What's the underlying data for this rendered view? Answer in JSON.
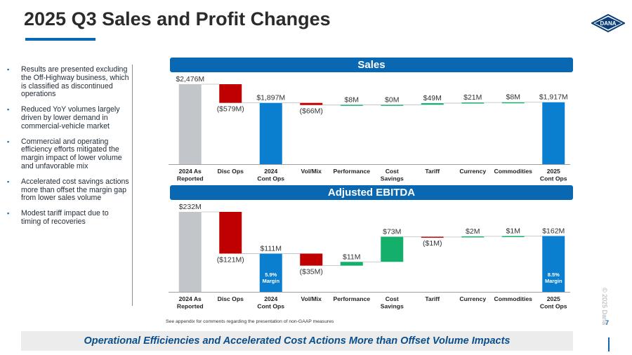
{
  "page": {
    "title": "2025 Q3 Sales and Profit Changes",
    "logo_text": "DANA",
    "copyright": "© 2025 Dana",
    "page_number": "7",
    "footnote": "See appendix for comments regarding the presentation of non-GAAP measures",
    "bottom_banner": "Operational Efficiencies and Accelerated Cost Actions More than Offset Volume Impacts",
    "colors": {
      "brand": "#0a67b2",
      "baseline": "#c2c6ca",
      "decrease": "#c00000",
      "increase": "#14b06b",
      "total": "#0a7fd0"
    }
  },
  "bullets": [
    "Results are presented excluding the Off-Highway business, which is classified as discontinued operations",
    "Reduced YoY volumes largely driven by lower demand in commercial-vehicle market",
    "Commercial and operating efficiency efforts mitigated the margin impact of lower volume and unfavorable mix",
    "Accelerated cost savings actions more than offset the margin gap from lower sales volume",
    "Modest tariff impact due to timing of recoveries"
  ],
  "chart_data": [
    {
      "type": "bar",
      "subtype": "waterfall",
      "title": "Sales",
      "unit": "$M",
      "categories": [
        "2024 As Reported",
        "Disc Ops",
        "2024 Cont Ops",
        "Vol/Mix",
        "Performance",
        "Cost Savings",
        "Tariff",
        "Currency",
        "Commodities",
        "2025 Cont Ops"
      ],
      "tick_labels": [
        [
          "2024 As",
          "Reported"
        ],
        [
          "Disc Ops"
        ],
        [
          "2024",
          "Cont Ops"
        ],
        [
          "Vol/Mix"
        ],
        [
          "Performance"
        ],
        [
          "Cost",
          "Savings"
        ],
        [
          "Tariff"
        ],
        [
          "Currency"
        ],
        [
          "Commodities"
        ],
        [
          "2025",
          "Cont Ops"
        ]
      ],
      "values": [
        2476,
        -579,
        1897,
        -66,
        8,
        0,
        49,
        21,
        8,
        1917
      ],
      "kinds": [
        "baseline",
        "delta",
        "total",
        "delta",
        "delta",
        "delta",
        "delta",
        "delta",
        "delta",
        "total"
      ],
      "data_labels": [
        "$2,476M",
        "($579M)",
        "$1,897M",
        "($66M)",
        "$8M",
        "$0M",
        "$49M",
        "$21M",
        "$8M",
        "$1,917M"
      ],
      "bar_notes": [
        "",
        "",
        "",
        "",
        "",
        "",
        "",
        "",
        "",
        ""
      ],
      "ylim": [
        0,
        2476
      ]
    },
    {
      "type": "bar",
      "subtype": "waterfall",
      "title": "Adjusted EBITDA",
      "unit": "$M",
      "categories": [
        "2024 As Reported",
        "Disc Ops",
        "2024 Cont Ops",
        "Vol/Mix",
        "Performance",
        "Cost Savings",
        "Tariff",
        "Currency",
        "Commodities",
        "2025 Cont Ops"
      ],
      "tick_labels": [
        [
          "2024 As",
          "Reported"
        ],
        [
          "Disc Ops"
        ],
        [
          "2024",
          "Cont Ops"
        ],
        [
          "Vol/Mix"
        ],
        [
          "Performance"
        ],
        [
          "Cost",
          "Savings"
        ],
        [
          "Tariff"
        ],
        [
          "Currency"
        ],
        [
          "Commodities"
        ],
        [
          "2025",
          "Cont Ops"
        ]
      ],
      "values": [
        232,
        -121,
        111,
        -35,
        11,
        73,
        -1,
        2,
        1,
        162
      ],
      "kinds": [
        "baseline",
        "delta",
        "total",
        "delta",
        "delta",
        "delta",
        "delta",
        "delta",
        "delta",
        "total"
      ],
      "data_labels": [
        "$232M",
        "($121M)",
        "$111M",
        "($35M)",
        "$11M",
        "$73M",
        "($1M)",
        "$2M",
        "$1M",
        "$162M"
      ],
      "bar_notes": [
        "",
        "",
        "5.9% Margin",
        "",
        "",
        "",
        "",
        "",
        "",
        "8.5% Margin"
      ],
      "ylim": [
        0,
        232
      ]
    }
  ]
}
